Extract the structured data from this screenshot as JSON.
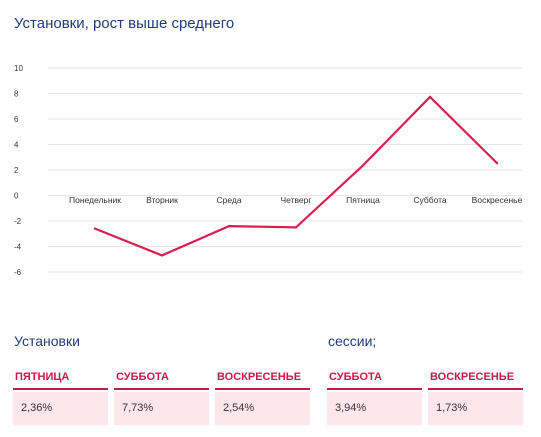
{
  "title": "Установки, рост выше среднего",
  "chart_data": {
    "type": "line",
    "title": "Установки, рост выше среднего",
    "categories": [
      "Понедельник",
      "Вторник",
      "Среда",
      "Четверг",
      "Пятница",
      "Суббота",
      "Воскресенье"
    ],
    "series": [
      {
        "values": [
          -2.6,
          -4.7,
          -2.4,
          -2.5,
          2.36,
          7.73,
          2.54
        ]
      }
    ],
    "yticks": [
      10,
      8,
      6,
      4,
      2,
      0,
      -2,
      -4,
      -6
    ],
    "ylim": [
      -6,
      10
    ],
    "grid": true,
    "xlabel": "",
    "ylabel": "",
    "colors": {
      "line": "#d81e4f",
      "grid": "#e6e6e6"
    }
  },
  "installs": {
    "title": "Установки",
    "cards": [
      {
        "label": "ПЯТНИЦА",
        "value": "2,36%"
      },
      {
        "label": "СУББОТА",
        "value": "7,73%"
      },
      {
        "label": "ВОСКРЕСЕНЬЕ",
        "value": "2,54%"
      }
    ]
  },
  "sessions": {
    "title": "сессии;",
    "cards": [
      {
        "label": "СУББОТА",
        "value": "3,94%"
      },
      {
        "label": "ВОСКРЕСЕНЬЕ",
        "value": "1,73%"
      }
    ]
  },
  "colors": {
    "accent": "#c8194a",
    "title": "#1f3d7a",
    "card_bg": "#fde7ec"
  }
}
